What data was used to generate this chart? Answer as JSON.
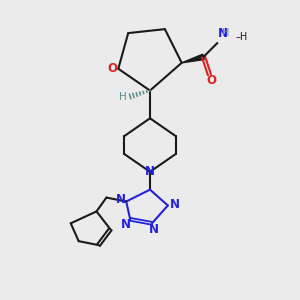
{
  "bg_color": "#ebebeb",
  "bond_color": "#1a1a1a",
  "N_color": "#2222dd",
  "O_color": "#dd2222",
  "H_color": "#5a9090",
  "font_size_atom": 8.5,
  "font_size_H": 7.5,
  "line_width": 1.5,
  "figsize": [
    3.0,
    3.0
  ],
  "dpi": 100,
  "xlim": [
    0.0,
    3.0
  ],
  "ylim": [
    0.0,
    3.0
  ]
}
